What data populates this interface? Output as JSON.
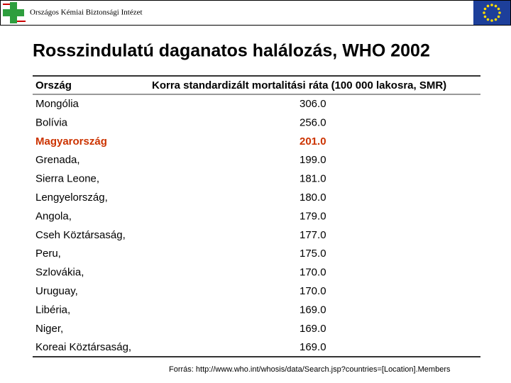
{
  "header": {
    "institute": "Országos Kémiai Biztonsági Intézet"
  },
  "title": "Rosszindulatú daganatos halálozás, WHO 2002",
  "table": {
    "columns": [
      "Ország",
      "Korra standardizált mortalitási ráta (100 000 lakosra, SMR)"
    ],
    "rows": [
      [
        "Mongólia",
        "306.0"
      ],
      [
        "Bolívia",
        "256.0"
      ],
      [
        "Magyarország",
        "201.0"
      ],
      [
        "Grenada,",
        "199.0"
      ],
      [
        "Sierra Leone,",
        "181.0"
      ],
      [
        "Lengyelország,",
        "180.0"
      ],
      [
        "Angola,",
        "179.0"
      ],
      [
        "Cseh Köztársaság,",
        "177.0"
      ],
      [
        "Peru,",
        "175.0"
      ],
      [
        "Szlovákia,",
        "170.0"
      ],
      [
        "Uruguay,",
        "170.0"
      ],
      [
        "Libéria,",
        "169.0"
      ],
      [
        "Niger,",
        "169.0"
      ],
      [
        "Koreai Köztársaság,",
        "169.0"
      ]
    ]
  },
  "source": "Forrás: http://www.who.int/whosis/data/Search.jsp?countries=[Location].Members"
}
